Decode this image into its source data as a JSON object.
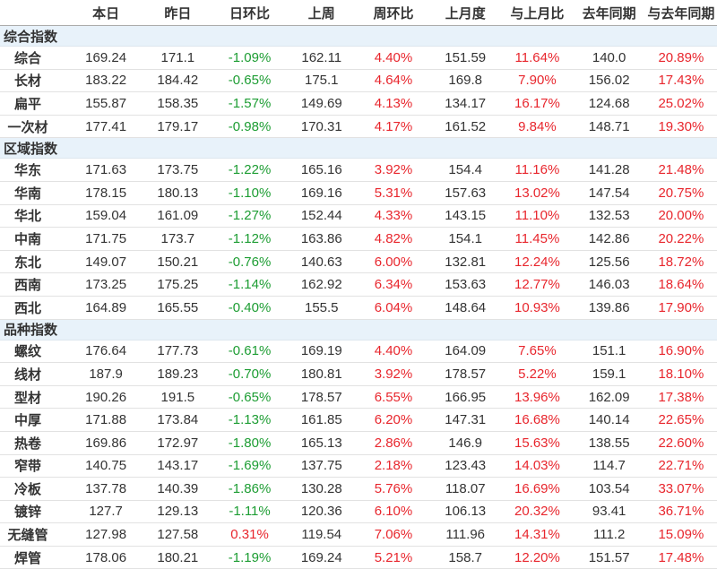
{
  "table": {
    "columns": [
      "本日",
      "昨日",
      "日环比",
      "上周",
      "周环比",
      "上月度",
      "与上月比",
      "去年同期",
      "与去年同期"
    ],
    "column_types": [
      "num",
      "num",
      "pct",
      "num",
      "pct",
      "num",
      "pct",
      "num",
      "pct"
    ],
    "colors": {
      "positive": "#e8262d",
      "negative": "#1d9d33",
      "section_band": "#e8f2fa"
    },
    "sections": [
      {
        "title": "综合指数",
        "rows": [
          {
            "label": "综合",
            "values": [
              "169.24",
              "171.1",
              "-1.09%",
              "162.11",
              "4.40%",
              "151.59",
              "11.64%",
              "140.0",
              "20.89%"
            ]
          },
          {
            "label": "长材",
            "values": [
              "183.22",
              "184.42",
              "-0.65%",
              "175.1",
              "4.64%",
              "169.8",
              "7.90%",
              "156.02",
              "17.43%"
            ]
          },
          {
            "label": "扁平",
            "values": [
              "155.87",
              "158.35",
              "-1.57%",
              "149.69",
              "4.13%",
              "134.17",
              "16.17%",
              "124.68",
              "25.02%"
            ]
          },
          {
            "label": "一次材",
            "values": [
              "177.41",
              "179.17",
              "-0.98%",
              "170.31",
              "4.17%",
              "161.52",
              "9.84%",
              "148.71",
              "19.30%"
            ]
          }
        ]
      },
      {
        "title": "区域指数",
        "rows": [
          {
            "label": "华东",
            "values": [
              "171.63",
              "173.75",
              "-1.22%",
              "165.16",
              "3.92%",
              "154.4",
              "11.16%",
              "141.28",
              "21.48%"
            ]
          },
          {
            "label": "华南",
            "values": [
              "178.15",
              "180.13",
              "-1.10%",
              "169.16",
              "5.31%",
              "157.63",
              "13.02%",
              "147.54",
              "20.75%"
            ]
          },
          {
            "label": "华北",
            "values": [
              "159.04",
              "161.09",
              "-1.27%",
              "152.44",
              "4.33%",
              "143.15",
              "11.10%",
              "132.53",
              "20.00%"
            ]
          },
          {
            "label": "中南",
            "values": [
              "171.75",
              "173.7",
              "-1.12%",
              "163.86",
              "4.82%",
              "154.1",
              "11.45%",
              "142.86",
              "20.22%"
            ]
          },
          {
            "label": "东北",
            "values": [
              "149.07",
              "150.21",
              "-0.76%",
              "140.63",
              "6.00%",
              "132.81",
              "12.24%",
              "125.56",
              "18.72%"
            ]
          },
          {
            "label": "西南",
            "values": [
              "173.25",
              "175.25",
              "-1.14%",
              "162.92",
              "6.34%",
              "153.63",
              "12.77%",
              "146.03",
              "18.64%"
            ]
          },
          {
            "label": "西北",
            "values": [
              "164.89",
              "165.55",
              "-0.40%",
              "155.5",
              "6.04%",
              "148.64",
              "10.93%",
              "139.86",
              "17.90%"
            ]
          }
        ]
      },
      {
        "title": "品种指数",
        "rows": [
          {
            "label": "螺纹",
            "values": [
              "176.64",
              "177.73",
              "-0.61%",
              "169.19",
              "4.40%",
              "164.09",
              "7.65%",
              "151.1",
              "16.90%"
            ]
          },
          {
            "label": "线材",
            "values": [
              "187.9",
              "189.23",
              "-0.70%",
              "180.81",
              "3.92%",
              "178.57",
              "5.22%",
              "159.1",
              "18.10%"
            ]
          },
          {
            "label": "型材",
            "values": [
              "190.26",
              "191.5",
              "-0.65%",
              "178.57",
              "6.55%",
              "166.95",
              "13.96%",
              "162.09",
              "17.38%"
            ]
          },
          {
            "label": "中厚",
            "values": [
              "171.88",
              "173.84",
              "-1.13%",
              "161.85",
              "6.20%",
              "147.31",
              "16.68%",
              "140.14",
              "22.65%"
            ]
          },
          {
            "label": "热卷",
            "values": [
              "169.86",
              "172.97",
              "-1.80%",
              "165.13",
              "2.86%",
              "146.9",
              "15.63%",
              "138.55",
              "22.60%"
            ]
          },
          {
            "label": "窄带",
            "values": [
              "140.75",
              "143.17",
              "-1.69%",
              "137.75",
              "2.18%",
              "123.43",
              "14.03%",
              "114.7",
              "22.71%"
            ]
          },
          {
            "label": "冷板",
            "values": [
              "137.78",
              "140.39",
              "-1.86%",
              "130.28",
              "5.76%",
              "118.07",
              "16.69%",
              "103.54",
              "33.07%"
            ]
          },
          {
            "label": "镀锌",
            "values": [
              "127.7",
              "129.13",
              "-1.11%",
              "120.36",
              "6.10%",
              "106.13",
              "20.32%",
              "93.41",
              "36.71%"
            ]
          },
          {
            "label": "无缝管",
            "values": [
              "127.98",
              "127.58",
              "0.31%",
              "119.54",
              "7.06%",
              "111.96",
              "14.31%",
              "111.2",
              "15.09%"
            ]
          },
          {
            "label": "焊管",
            "values": [
              "178.06",
              "180.21",
              "-1.19%",
              "169.24",
              "5.21%",
              "158.7",
              "12.20%",
              "151.57",
              "17.48%"
            ]
          }
        ]
      }
    ]
  }
}
